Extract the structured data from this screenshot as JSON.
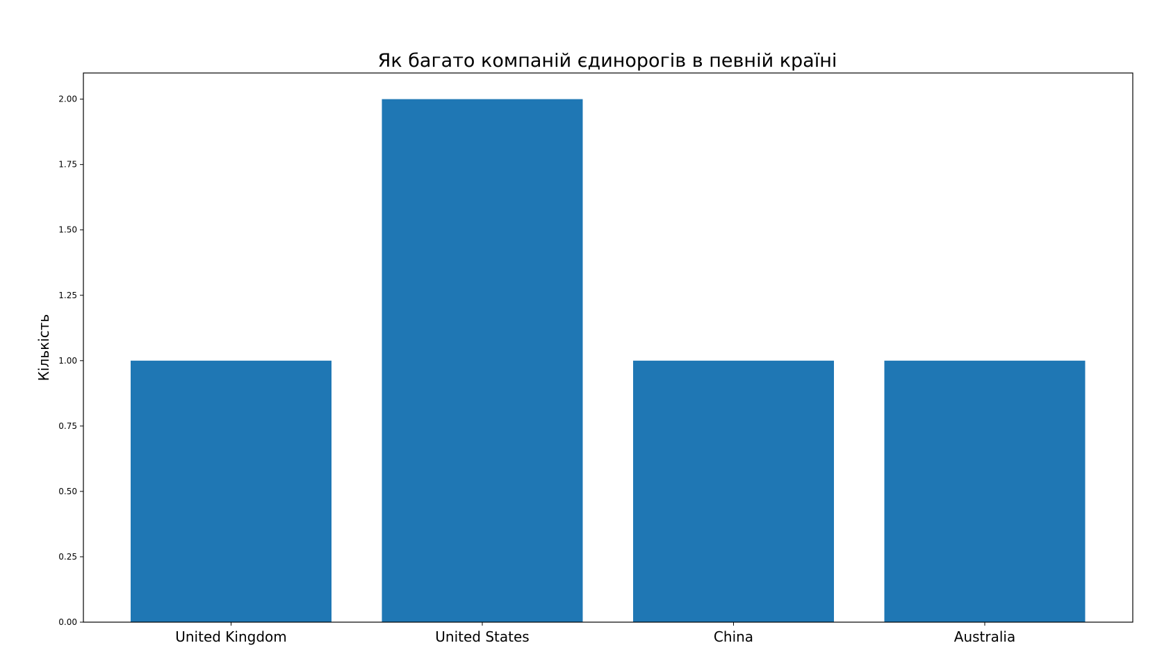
{
  "chart_data": {
    "type": "bar",
    "title": "Як багато компаній єдинорогів в певній країні",
    "xlabel": "",
    "ylabel": "Кількість",
    "categories": [
      "United Kingdom",
      "United States",
      "China",
      "Australia"
    ],
    "values": [
      1,
      2,
      1,
      1
    ],
    "ylim": [
      0,
      2.1
    ],
    "yticks": [
      "0.00",
      "0.25",
      "0.50",
      "0.75",
      "1.00",
      "1.25",
      "1.50",
      "1.75",
      "2.00"
    ],
    "bar_color": "#1f77b4",
    "grid": false
  }
}
